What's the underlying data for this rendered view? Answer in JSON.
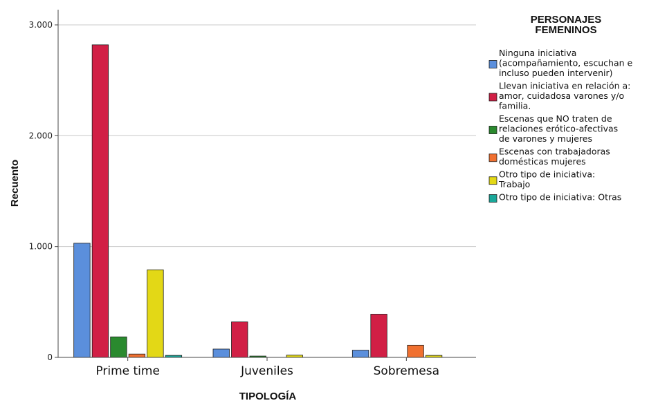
{
  "chart_data": {
    "type": "bar",
    "xlabel": "TIPOLOGÍA",
    "ylabel": "Recuento",
    "ylim": [
      0,
      3000
    ],
    "yticks": [
      {
        "value": 0,
        "label": "0"
      },
      {
        "value": 1000,
        "label": "1.000"
      },
      {
        "value": 2000,
        "label": "2.000"
      },
      {
        "value": 3000,
        "label": "3.000"
      }
    ],
    "grid": true,
    "legend_position": "right",
    "legend_title": [
      "PERSONAJES",
      "FEMENINOS"
    ],
    "categories": [
      "Prime time",
      "Juveniles",
      "Sobremesa"
    ],
    "series": [
      {
        "name": "Ninguna iniciativa (acompañamiento, escuchan e incluso pueden intervenir)",
        "legend_lines": [
          "Ninguna iniciativa",
          "(acompañamiento, escuchan e",
          "incluso pueden intervenir)"
        ],
        "color": "#5b8fdc",
        "values": [
          1030,
          75,
          65
        ]
      },
      {
        "name": "Llevan iniciativa en relación a: amor, cuidadosa varones y/o familia.",
        "legend_lines": [
          "Llevan iniciativa en relación a:",
          "amor, cuidadosa varones y/o",
          "familia."
        ],
        "color": "#d11f45",
        "values": [
          2820,
          320,
          390
        ]
      },
      {
        "name": "Escenas que NO traten de relaciones erótico-afectivas de varones y mujeres",
        "legend_lines": [
          "Escenas que NO traten de",
          "relaciones erótico-afectivas",
          "de varones y mujeres"
        ],
        "color": "#2a8a2e",
        "values": [
          185,
          12,
          0
        ]
      },
      {
        "name": "Escenas con trabajadoras domésticas mujeres",
        "legend_lines": [
          "Escenas con trabajadoras",
          "domésticas mujeres"
        ],
        "color": "#f07030",
        "values": [
          30,
          0,
          110
        ]
      },
      {
        "name": "Otro tipo de iniciativa: Trabajo",
        "legend_lines": [
          "Otro tipo de iniciativa:",
          "Trabajo"
        ],
        "color": "#e3d816",
        "values": [
          790,
          20,
          18
        ]
      },
      {
        "name": "Otro tipo de iniciativa: Otras",
        "legend_lines": [
          "Otro tipo de iniciativa: Otras"
        ],
        "color": "#1aa89a",
        "values": [
          18,
          0,
          0
        ]
      }
    ]
  }
}
